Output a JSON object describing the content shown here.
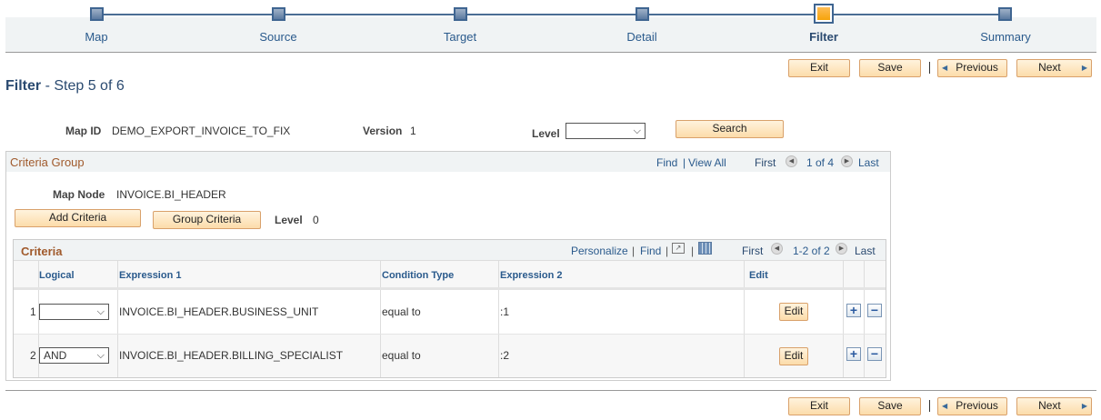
{
  "steps": [
    {
      "label": "Map"
    },
    {
      "label": "Source"
    },
    {
      "label": "Target"
    },
    {
      "label": "Detail"
    },
    {
      "label": "Filter",
      "active": true
    },
    {
      "label": "Summary"
    }
  ],
  "toolbar": {
    "exit": "Exit",
    "save": "Save",
    "previous": "Previous",
    "next": "Next"
  },
  "page": {
    "title": "Filter",
    "subtitle": "- Step 5 of 6"
  },
  "search": {
    "map_id_label": "Map ID",
    "map_id": "DEMO_EXPORT_INVOICE_TO_FIX",
    "version_label": "Version",
    "version": "1",
    "level_label": "Level",
    "level_value": "",
    "search_button": "Search"
  },
  "criteria_group": {
    "title": "Criteria Group",
    "find": "Find",
    "view_all": "View All",
    "first": "First",
    "count": "1 of 4",
    "last": "Last",
    "map_node_label": "Map Node",
    "map_node": "INVOICE.BI_HEADER",
    "add_criteria": "Add Criteria",
    "group_criteria": "Group Criteria",
    "level_label": "Level",
    "level": "0"
  },
  "criteria": {
    "title": "Criteria",
    "personalize": "Personalize",
    "find": "Find",
    "first": "First",
    "count": "1-2 of 2",
    "last": "Last",
    "columns": {
      "logical": "Logical",
      "expression1": "Expression 1",
      "condition_type": "Condition Type",
      "expression2": "Expression 2",
      "edit": "Edit"
    },
    "rows": [
      {
        "num": "1",
        "logical": "",
        "expression1": "INVOICE.BI_HEADER.BUSINESS_UNIT",
        "condition_type": "equal to",
        "expression2": ":1",
        "edit": "Edit"
      },
      {
        "num": "2",
        "logical": "AND",
        "expression1": "INVOICE.BI_HEADER.BILLING_SPECIALIST",
        "condition_type": "equal to",
        "expression2": ":2",
        "edit": "Edit"
      }
    ]
  },
  "colors": {
    "accent": "#2a5a8c",
    "active_step": "#f5a000",
    "section_title": "#a05a2c",
    "button": "#fcdcaa"
  }
}
